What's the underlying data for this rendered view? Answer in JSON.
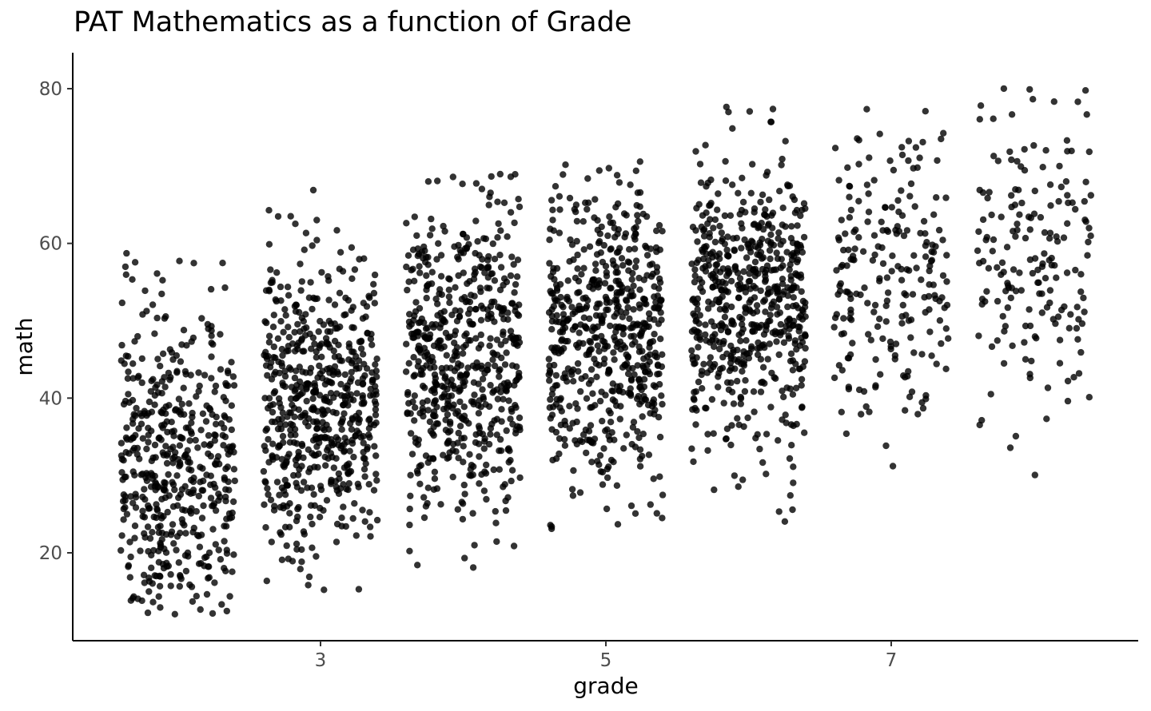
{
  "chart_data": {
    "type": "scatter",
    "title": "PAT Mathematics as a function of Grade",
    "xlabel": "grade",
    "ylabel": "math",
    "xlim": [
      1.3,
      8.8
    ],
    "ylim": [
      9,
      84
    ],
    "x_ticks": [
      "3",
      "5",
      "7"
    ],
    "y_ticks": [
      "20",
      "40",
      "60",
      "80"
    ],
    "grid": false,
    "legend": "none",
    "jitter_width": 0.4,
    "point_color": "#000000",
    "point_opacity": 0.8,
    "groups": [
      {
        "grade": 2,
        "n": 500,
        "mean": 31,
        "sd": 10,
        "min": 12,
        "max": 60
      },
      {
        "grade": 3,
        "n": 600,
        "mean": 39,
        "sd": 10,
        "min": 13,
        "max": 67
      },
      {
        "grade": 4,
        "n": 600,
        "mean": 45,
        "sd": 10,
        "min": 18,
        "max": 70
      },
      {
        "grade": 5,
        "n": 600,
        "mean": 48,
        "sd": 10,
        "min": 23,
        "max": 71
      },
      {
        "grade": 6,
        "n": 600,
        "mean": 52,
        "sd": 9,
        "min": 24,
        "max": 78
      },
      {
        "grade": 7,
        "n": 220,
        "mean": 56,
        "sd": 10,
        "min": 31,
        "max": 80
      },
      {
        "grade": 8,
        "n": 180,
        "mean": 58,
        "sd": 11,
        "min": 26,
        "max": 81
      }
    ]
  }
}
